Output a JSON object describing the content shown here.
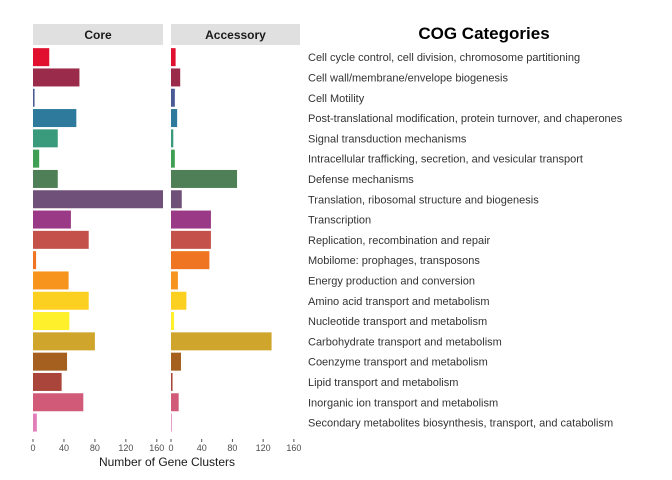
{
  "chart_data": {
    "type": "bar",
    "orientation": "horizontal",
    "legend_title": "COG Categories",
    "xlabel": "Number of Gene Clusters",
    "xlim": [
      0,
      168
    ],
    "xticks": [
      0,
      40,
      80,
      120,
      160
    ],
    "grid": false,
    "legend_placement": "right",
    "panels": [
      "Core",
      "Accessory"
    ],
    "categories": [
      "Cell cycle control, cell division, chromosome partitioning",
      "Cell wall/membrane/envelope biogenesis",
      "Cell Motility",
      "Post-translational modification, protein turnover, and chaperones",
      "Signal transduction mechanisms",
      "Intracellular trafficking, secretion, and vesicular transport",
      "Defense mechanisms",
      "Translation, ribosomal structure and biogenesis",
      "Transcription",
      "Replication, recombination and repair",
      "Mobilome: prophages, transposons",
      "Energy production and conversion",
      "Amino acid transport and metabolism",
      "Nucleotide transport and metabolism",
      "Carbohydrate transport and metabolism",
      "Coenzyme transport and metabolism",
      "Lipid transport and metabolism",
      "Inorganic ion transport and metabolism",
      "Secondary metabolites biosynthesis, transport, and catabolism"
    ],
    "colors": [
      "#e0102e",
      "#9a2b4a",
      "#4a5a94",
      "#2d7a9c",
      "#3a9a7c",
      "#3fa055",
      "#4f7f56",
      "#6e5078",
      "#9a3a87",
      "#c4524a",
      "#f07522",
      "#f7941d",
      "#fcd020",
      "#fff02c",
      "#d0a52c",
      "#a5601f",
      "#a9453a",
      "#d05a78",
      "#e27fba"
    ],
    "series": [
      {
        "name": "Core",
        "values": [
          21,
          60,
          2,
          56,
          32,
          8,
          32,
          168,
          49,
          72,
          4,
          46,
          72,
          47,
          80,
          44,
          37,
          65,
          5
        ]
      },
      {
        "name": "Accessory",
        "values": [
          6,
          12,
          5,
          8,
          3,
          5,
          86,
          14,
          52,
          52,
          50,
          9,
          20,
          4,
          131,
          13,
          2,
          10,
          1
        ]
      }
    ]
  }
}
